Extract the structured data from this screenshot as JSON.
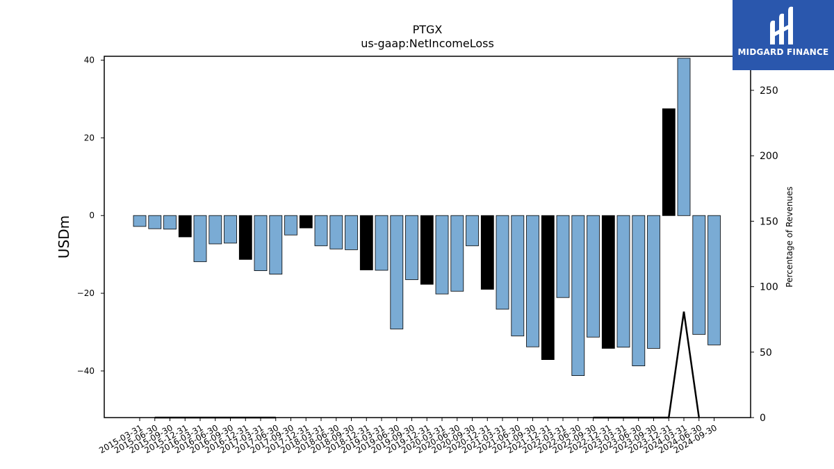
{
  "chart_data": {
    "type": "bar",
    "title": "PTGX",
    "subtitle": "us-gaap:NetIncomeLoss",
    "ylabel": "USDm",
    "y2label": "Percentage of Revenues",
    "ylim": [
      -52,
      41
    ],
    "y2lim": [
      0,
      276
    ],
    "yticks": [
      40,
      20,
      0,
      -20,
      -40
    ],
    "y2ticks": [
      0,
      50,
      100,
      150,
      200,
      250
    ],
    "categories": [
      "2015-03-31",
      "2015-06-30",
      "2015-09-30",
      "2015-12-31",
      "2016-03-31",
      "2016-06-30",
      "2016-09-30",
      "2016-12-31",
      "2017-03-31",
      "2017-06-30",
      "2017-09-30",
      "2017-12-31",
      "2018-03-31",
      "2018-06-30",
      "2018-09-30",
      "2018-12-31",
      "2019-03-31",
      "2019-06-30",
      "2019-09-30",
      "2019-12-31",
      "2020-03-31",
      "2020-06-30",
      "2020-09-30",
      "2020-12-31",
      "2021-03-31",
      "2021-06-30",
      "2021-09-30",
      "2021-12-31",
      "2022-03-31",
      "2022-06-30",
      "2022-09-30",
      "2022-12-31",
      "2023-03-31",
      "2023-06-30",
      "2023-09-30",
      "2023-12-31",
      "2024-03-31",
      "2024-06-30",
      "2024-09-30"
    ],
    "values": [
      -2.8,
      -3.4,
      -3.5,
      -5.5,
      -11.9,
      -7.3,
      -7.1,
      -11.3,
      -14.2,
      -15.1,
      -5.0,
      -3.2,
      -7.8,
      -8.6,
      -8.8,
      -14.0,
      -14.1,
      -29.2,
      -16.5,
      -17.7,
      -20.2,
      -19.5,
      -7.8,
      -19.0,
      -24.1,
      -31.0,
      -33.8,
      -37.1,
      -21.1,
      -41.2,
      -31.3,
      -34.2,
      -33.9,
      -38.7,
      -34.2,
      27.5,
      40.5,
      -30.6,
      -33.3
    ],
    "highlight": [
      false,
      false,
      false,
      true,
      false,
      false,
      false,
      true,
      false,
      false,
      false,
      true,
      false,
      false,
      false,
      true,
      false,
      false,
      false,
      true,
      false,
      false,
      false,
      true,
      false,
      false,
      false,
      true,
      false,
      false,
      false,
      true,
      false,
      false,
      false,
      true,
      false,
      false,
      false
    ],
    "line_values": [
      null,
      0,
      0,
      0,
      0,
      0,
      0,
      0,
      0,
      0,
      null,
      null,
      null,
      null,
      null,
      null,
      null,
      0,
      null,
      null,
      null,
      0,
      null,
      null,
      null,
      null,
      null,
      null,
      null,
      null,
      0,
      0,
      0,
      0,
      0,
      0,
      81,
      0,
      null
    ],
    "colors": {
      "bar": "#7aabd4",
      "highlight": "#000000",
      "edge": "#000000",
      "line": "#000000"
    },
    "grid": false,
    "legend": "none"
  },
  "logo": {
    "text": "MIDGARD FINANCE"
  }
}
